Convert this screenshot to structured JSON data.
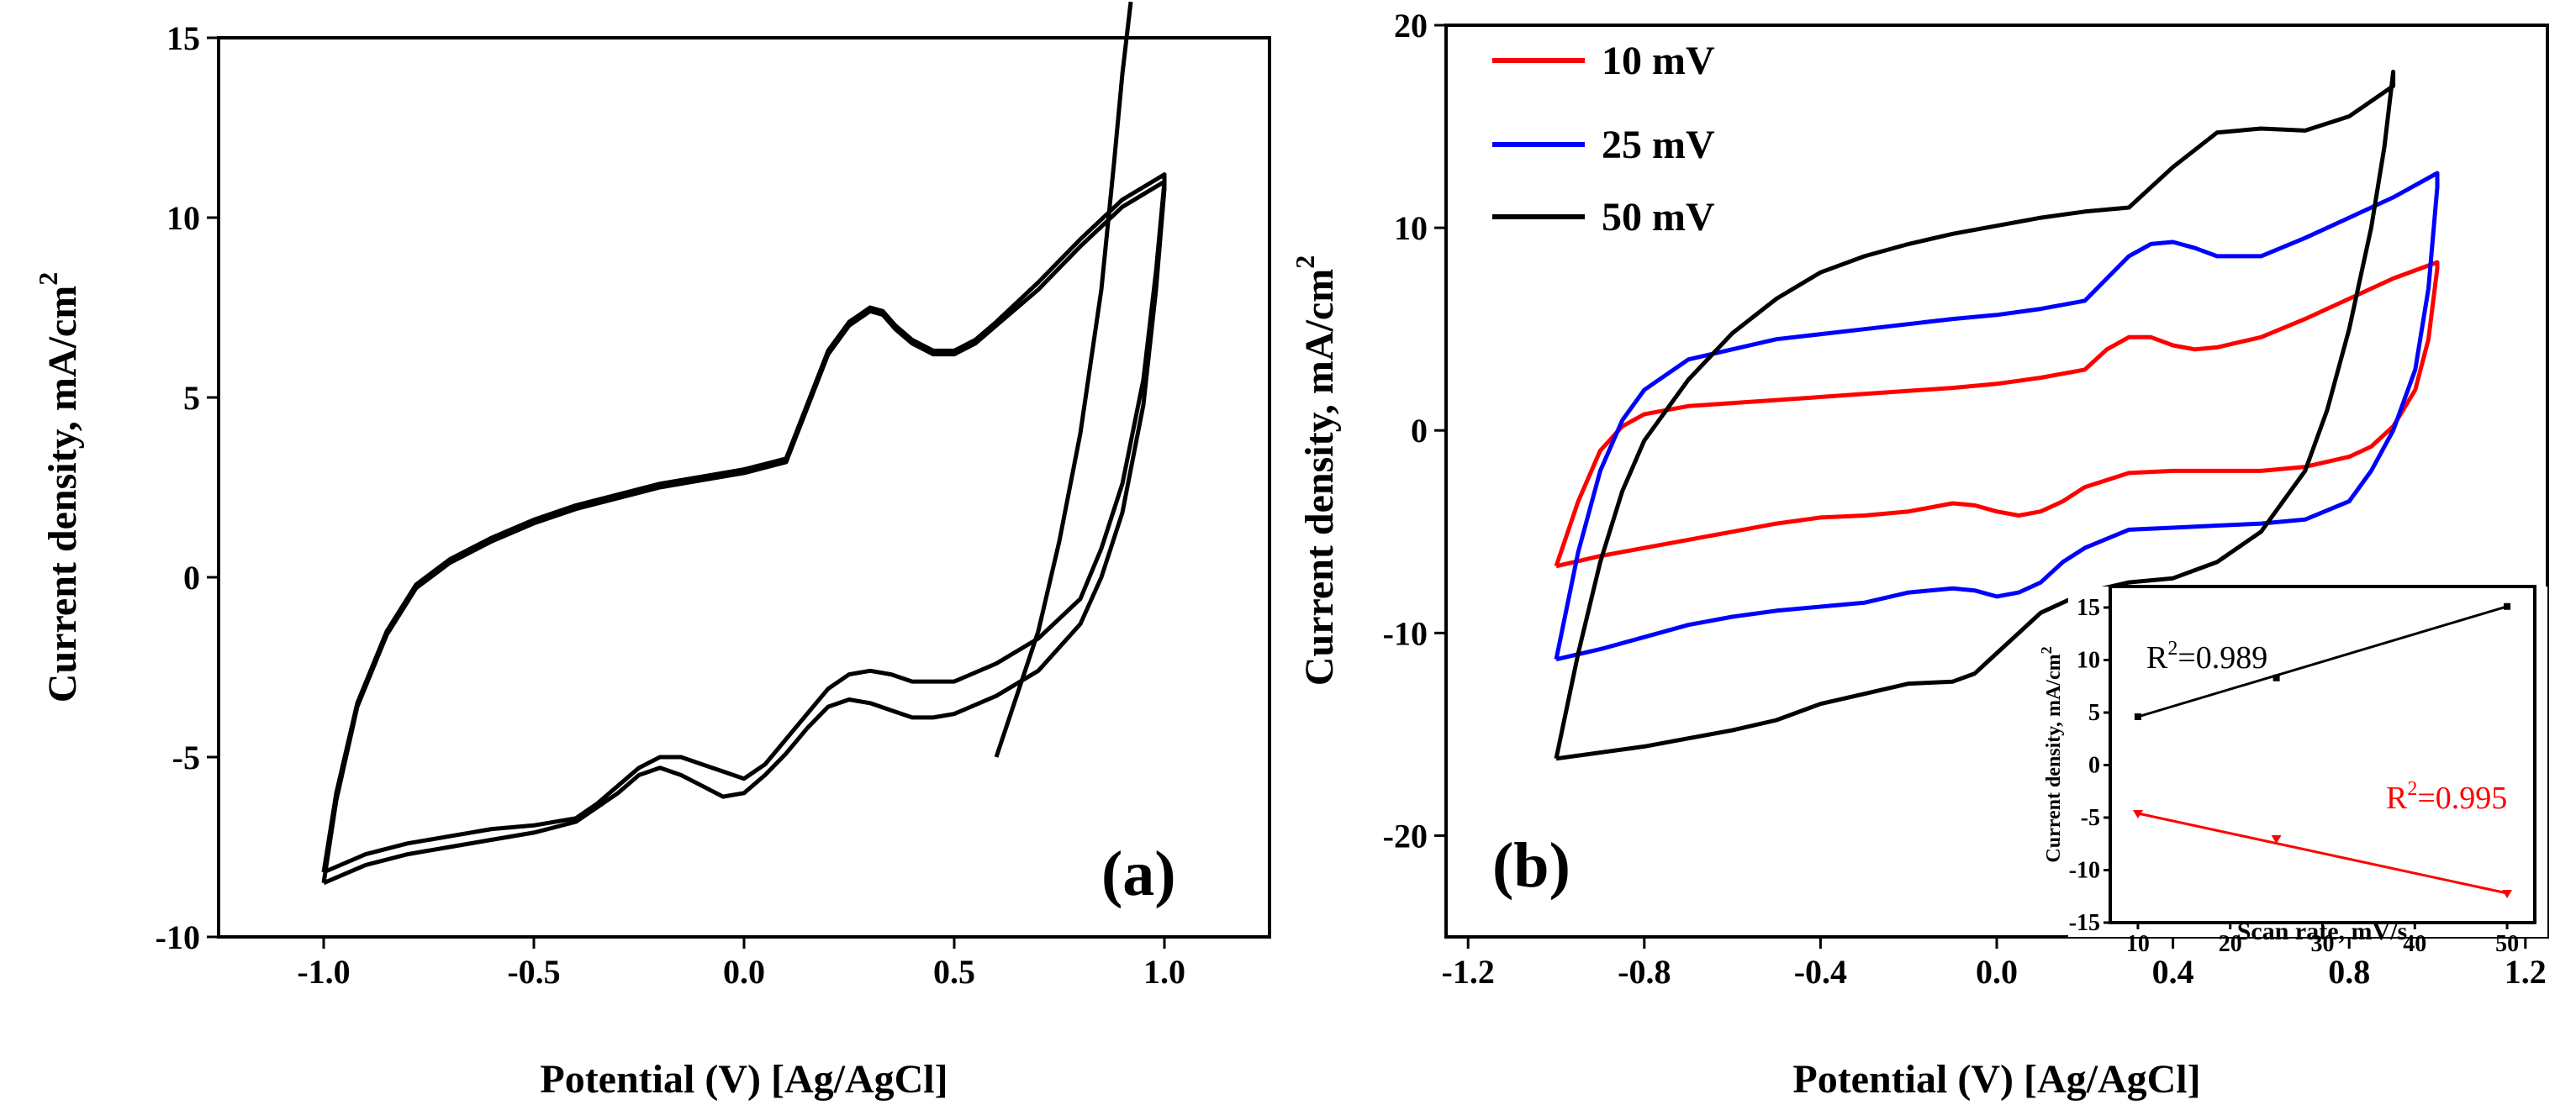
{
  "chart_data": [
    {
      "type": "line",
      "panel_label": "(a)",
      "xlabel": "Potential (V) [Ag/AgCl]",
      "ylabel": "Current density, mA/cm",
      "ylabel_sup": "2",
      "xlim": [
        -1.25,
        1.25
      ],
      "ylim": [
        -10,
        15
      ],
      "xticks": [
        -1.0,
        -0.5,
        0.0,
        0.5,
        1.0
      ],
      "xtick_labels": [
        "-1.0",
        "-0.5",
        "0.0",
        "0.5",
        "1.0"
      ],
      "yticks": [
        -10,
        -5,
        0,
        5,
        10,
        15
      ],
      "ytick_labels": [
        "-10",
        "-5",
        "0",
        "5",
        "10",
        "15"
      ],
      "color": "#000000",
      "series": [
        {
          "x": [
            -1.0,
            -0.97,
            -0.92,
            -0.85,
            -0.78,
            -0.7,
            -0.6,
            -0.5,
            -0.4,
            -0.3,
            -0.2,
            -0.1,
            0.0,
            0.1,
            0.15,
            0.2,
            0.25,
            0.3,
            0.33,
            0.36,
            0.4,
            0.45,
            0.5,
            0.55,
            0.6,
            0.7,
            0.8,
            0.9,
            1.0,
            1.0,
            0.98,
            0.95,
            0.9,
            0.85,
            0.8,
            0.7,
            0.6,
            0.5,
            0.45,
            0.4,
            0.35,
            0.3,
            0.25,
            0.2,
            0.15,
            0.1,
            0.05,
            0.0,
            -0.05,
            -0.1,
            -0.15,
            -0.2,
            -0.25,
            -0.3,
            -0.35,
            -0.4,
            -0.5,
            -0.6,
            -0.7,
            -0.8,
            -0.9,
            -1.0
          ],
          "y": [
            -8.2,
            -6.0,
            -3.5,
            -1.5,
            -0.2,
            0.5,
            1.1,
            1.6,
            2.0,
            2.3,
            2.6,
            2.8,
            3.0,
            3.3,
            4.8,
            6.3,
            7.1,
            7.5,
            7.4,
            7.0,
            6.6,
            6.3,
            6.3,
            6.6,
            7.1,
            8.2,
            9.4,
            10.5,
            11.2,
            11.0,
            8.5,
            5.5,
            2.6,
            0.8,
            -0.6,
            -1.7,
            -2.4,
            -2.9,
            -2.9,
            -2.9,
            -2.7,
            -2.6,
            -2.7,
            -3.1,
            -3.8,
            -4.5,
            -5.2,
            -5.6,
            -5.4,
            -5.2,
            -5.0,
            -5.0,
            -5.3,
            -5.8,
            -6.3,
            -6.7,
            -6.9,
            -7.0,
            -7.2,
            -7.4,
            -7.7,
            -8.2
          ]
        },
        {
          "x": [
            -1.0,
            -0.97,
            -0.92,
            -0.85,
            -0.78,
            -0.7,
            -0.6,
            -0.5,
            -0.4,
            -0.3,
            -0.2,
            -0.1,
            0.0,
            0.1,
            0.15,
            0.2,
            0.25,
            0.3,
            0.33,
            0.36,
            0.4,
            0.45,
            0.5,
            0.55,
            0.6,
            0.7,
            0.8,
            0.9,
            1.0,
            1.0,
            0.98,
            0.95,
            0.9,
            0.85,
            0.8,
            0.7,
            0.6,
            0.5,
            0.45,
            0.4,
            0.35,
            0.3,
            0.25,
            0.2,
            0.15,
            0.1,
            0.05,
            0.0,
            -0.05,
            -0.1,
            -0.15,
            -0.2,
            -0.25,
            -0.3,
            -0.35,
            -0.4,
            -0.5,
            -0.6,
            -0.7,
            -0.8,
            -0.9,
            -1.0
          ],
          "y": [
            -8.5,
            -6.2,
            -3.6,
            -1.6,
            -0.3,
            0.4,
            1.0,
            1.5,
            1.9,
            2.2,
            2.5,
            2.7,
            2.9,
            3.2,
            4.7,
            6.2,
            7.0,
            7.4,
            7.3,
            6.9,
            6.5,
            6.2,
            6.2,
            6.5,
            7.0,
            8.0,
            9.2,
            10.3,
            11.0,
            10.8,
            8.0,
            4.8,
            1.8,
            0.0,
            -1.3,
            -2.6,
            -3.3,
            -3.8,
            -3.9,
            -3.9,
            -3.7,
            -3.5,
            -3.4,
            -3.6,
            -4.2,
            -4.9,
            -5.5,
            -6.0,
            -6.1,
            -5.8,
            -5.5,
            -5.3,
            -5.5,
            -6.0,
            -6.4,
            -6.8,
            -7.1,
            -7.3,
            -7.5,
            -7.7,
            -8.0,
            -8.5
          ]
        },
        {
          "x": [
            0.6,
            0.7,
            0.75,
            0.8,
            0.85,
            0.88,
            0.9,
            0.92
          ],
          "y": [
            -5.0,
            -1.5,
            1.0,
            4.0,
            8.0,
            11.5,
            14.0,
            16.0
          ]
        }
      ]
    },
    {
      "type": "line",
      "panel_label": "(b)",
      "xlabel": "Potential (V) [Ag/AgCl]",
      "ylabel": "Current density, mA/cm",
      "ylabel_sup": "2",
      "xlim": [
        -1.25,
        1.25
      ],
      "ylim": [
        -25,
        20
      ],
      "xticks": [
        -1.2,
        -0.8,
        -0.4,
        0.0,
        0.4,
        0.8,
        1.2
      ],
      "xtick_labels": [
        "-1.2",
        "-0.8",
        "-0.4",
        "0.0",
        "0.4",
        "0.8",
        "1.2"
      ],
      "yticks": [
        -20,
        -10,
        0,
        10,
        20
      ],
      "ytick_labels": [
        "-20",
        "-10",
        "0",
        "10",
        "20"
      ],
      "legend_position": "top-left",
      "series": [
        {
          "name": "10 mV",
          "color": "#ff0000",
          "x": [
            -1.0,
            -0.95,
            -0.9,
            -0.85,
            -0.8,
            -0.7,
            -0.5,
            -0.3,
            -0.1,
            0.0,
            0.1,
            0.2,
            0.25,
            0.3,
            0.35,
            0.4,
            0.45,
            0.5,
            0.6,
            0.7,
            0.8,
            0.9,
            1.0,
            1.0,
            0.98,
            0.95,
            0.9,
            0.85,
            0.8,
            0.7,
            0.6,
            0.5,
            0.4,
            0.3,
            0.2,
            0.15,
            0.1,
            0.05,
            0.0,
            -0.05,
            -0.1,
            -0.2,
            -0.3,
            -0.4,
            -0.5,
            -0.6,
            -0.7,
            -0.8,
            -0.9,
            -1.0
          ],
          "y": [
            -6.7,
            -3.5,
            -1.0,
            0.2,
            0.8,
            1.2,
            1.5,
            1.8,
            2.1,
            2.3,
            2.6,
            3.0,
            4.0,
            4.6,
            4.6,
            4.2,
            4.0,
            4.1,
            4.6,
            5.5,
            6.5,
            7.5,
            8.3,
            8.0,
            4.5,
            2.0,
            0.2,
            -0.8,
            -1.3,
            -1.8,
            -2.0,
            -2.0,
            -2.0,
            -2.1,
            -2.8,
            -3.5,
            -4.0,
            -4.2,
            -4.0,
            -3.7,
            -3.6,
            -4.0,
            -4.2,
            -4.3,
            -4.6,
            -5.0,
            -5.4,
            -5.8,
            -6.2,
            -6.7
          ]
        },
        {
          "name": "25 mV",
          "color": "#0000ff",
          "x": [
            -1.0,
            -0.95,
            -0.9,
            -0.85,
            -0.8,
            -0.7,
            -0.5,
            -0.3,
            -0.1,
            0.0,
            0.1,
            0.2,
            0.25,
            0.3,
            0.35,
            0.4,
            0.45,
            0.5,
            0.6,
            0.7,
            0.8,
            0.9,
            1.0,
            1.0,
            0.98,
            0.95,
            0.9,
            0.85,
            0.8,
            0.7,
            0.6,
            0.5,
            0.4,
            0.3,
            0.2,
            0.15,
            0.1,
            0.05,
            0.0,
            -0.05,
            -0.1,
            -0.2,
            -0.3,
            -0.4,
            -0.5,
            -0.6,
            -0.7,
            -0.8,
            -0.9,
            -1.0
          ],
          "y": [
            -11.3,
            -6.0,
            -2.0,
            0.5,
            2.0,
            3.5,
            4.5,
            5.0,
            5.5,
            5.7,
            6.0,
            6.4,
            7.5,
            8.6,
            9.2,
            9.3,
            9.0,
            8.6,
            8.6,
            9.5,
            10.5,
            11.5,
            12.7,
            12.0,
            7.0,
            3.0,
            0.0,
            -2.0,
            -3.5,
            -4.4,
            -4.6,
            -4.7,
            -4.8,
            -4.9,
            -5.8,
            -6.5,
            -7.5,
            -8.0,
            -8.2,
            -7.9,
            -7.8,
            -8.0,
            -8.5,
            -8.7,
            -8.9,
            -9.2,
            -9.6,
            -10.2,
            -10.8,
            -11.3
          ]
        },
        {
          "name": "50 mV",
          "color": "#000000",
          "x": [
            -1.0,
            -0.95,
            -0.9,
            -0.85,
            -0.8,
            -0.7,
            -0.6,
            -0.5,
            -0.4,
            -0.3,
            -0.2,
            -0.1,
            0.0,
            0.1,
            0.2,
            0.3,
            0.4,
            0.5,
            0.6,
            0.7,
            0.8,
            0.9,
            0.9,
            0.88,
            0.85,
            0.8,
            0.75,
            0.7,
            0.6,
            0.5,
            0.4,
            0.3,
            0.2,
            0.1,
            0.05,
            0.0,
            -0.05,
            -0.1,
            -0.2,
            -0.3,
            -0.4,
            -0.5,
            -0.6,
            -0.7,
            -0.8,
            -0.9,
            -1.0
          ],
          "y": [
            -16.2,
            -11.0,
            -6.5,
            -3.0,
            -0.5,
            2.5,
            4.8,
            6.5,
            7.8,
            8.6,
            9.2,
            9.7,
            10.1,
            10.5,
            10.8,
            11.0,
            13.0,
            14.7,
            14.9,
            14.8,
            15.5,
            17.0,
            17.7,
            14.0,
            10.0,
            5.0,
            1.0,
            -2.0,
            -5.0,
            -6.5,
            -7.3,
            -7.5,
            -8.0,
            -9.0,
            -10.0,
            -11.0,
            -12.0,
            -12.4,
            -12.5,
            -13.0,
            -13.5,
            -14.3,
            -14.8,
            -15.2,
            -15.6,
            -15.9,
            -16.2
          ]
        }
      ],
      "inset": {
        "type": "scatter",
        "xlabel": "Scan rate, mV/s",
        "ylabel": "Current density, mA/cm",
        "ylabel_sup": "2",
        "xlim": [
          7,
          53
        ],
        "ylim": [
          -15,
          17
        ],
        "xticks": [
          10,
          20,
          30,
          40,
          50
        ],
        "xtick_labels": [
          "10",
          "20",
          "30",
          "40",
          "50"
        ],
        "yticks": [
          -15,
          -10,
          -5,
          0,
          5,
          10,
          15
        ],
        "ytick_labels": [
          "-15",
          "-10",
          "-5",
          "0",
          "5",
          "10",
          "15"
        ],
        "series": [
          {
            "color": "#000000",
            "x": [
              10,
              25,
              50
            ],
            "y": [
              4.6,
              8.3,
              15.1
            ],
            "annotation_prefix": "R",
            "annotation_sup": "2",
            "annotation": "=0.989"
          },
          {
            "color": "#ff0000",
            "x": [
              10,
              25,
              50
            ],
            "y": [
              -4.6,
              -7.0,
              -12.2
            ],
            "annotation_prefix": "R",
            "annotation_sup": "2",
            "annotation": "=0.995"
          }
        ]
      }
    }
  ]
}
